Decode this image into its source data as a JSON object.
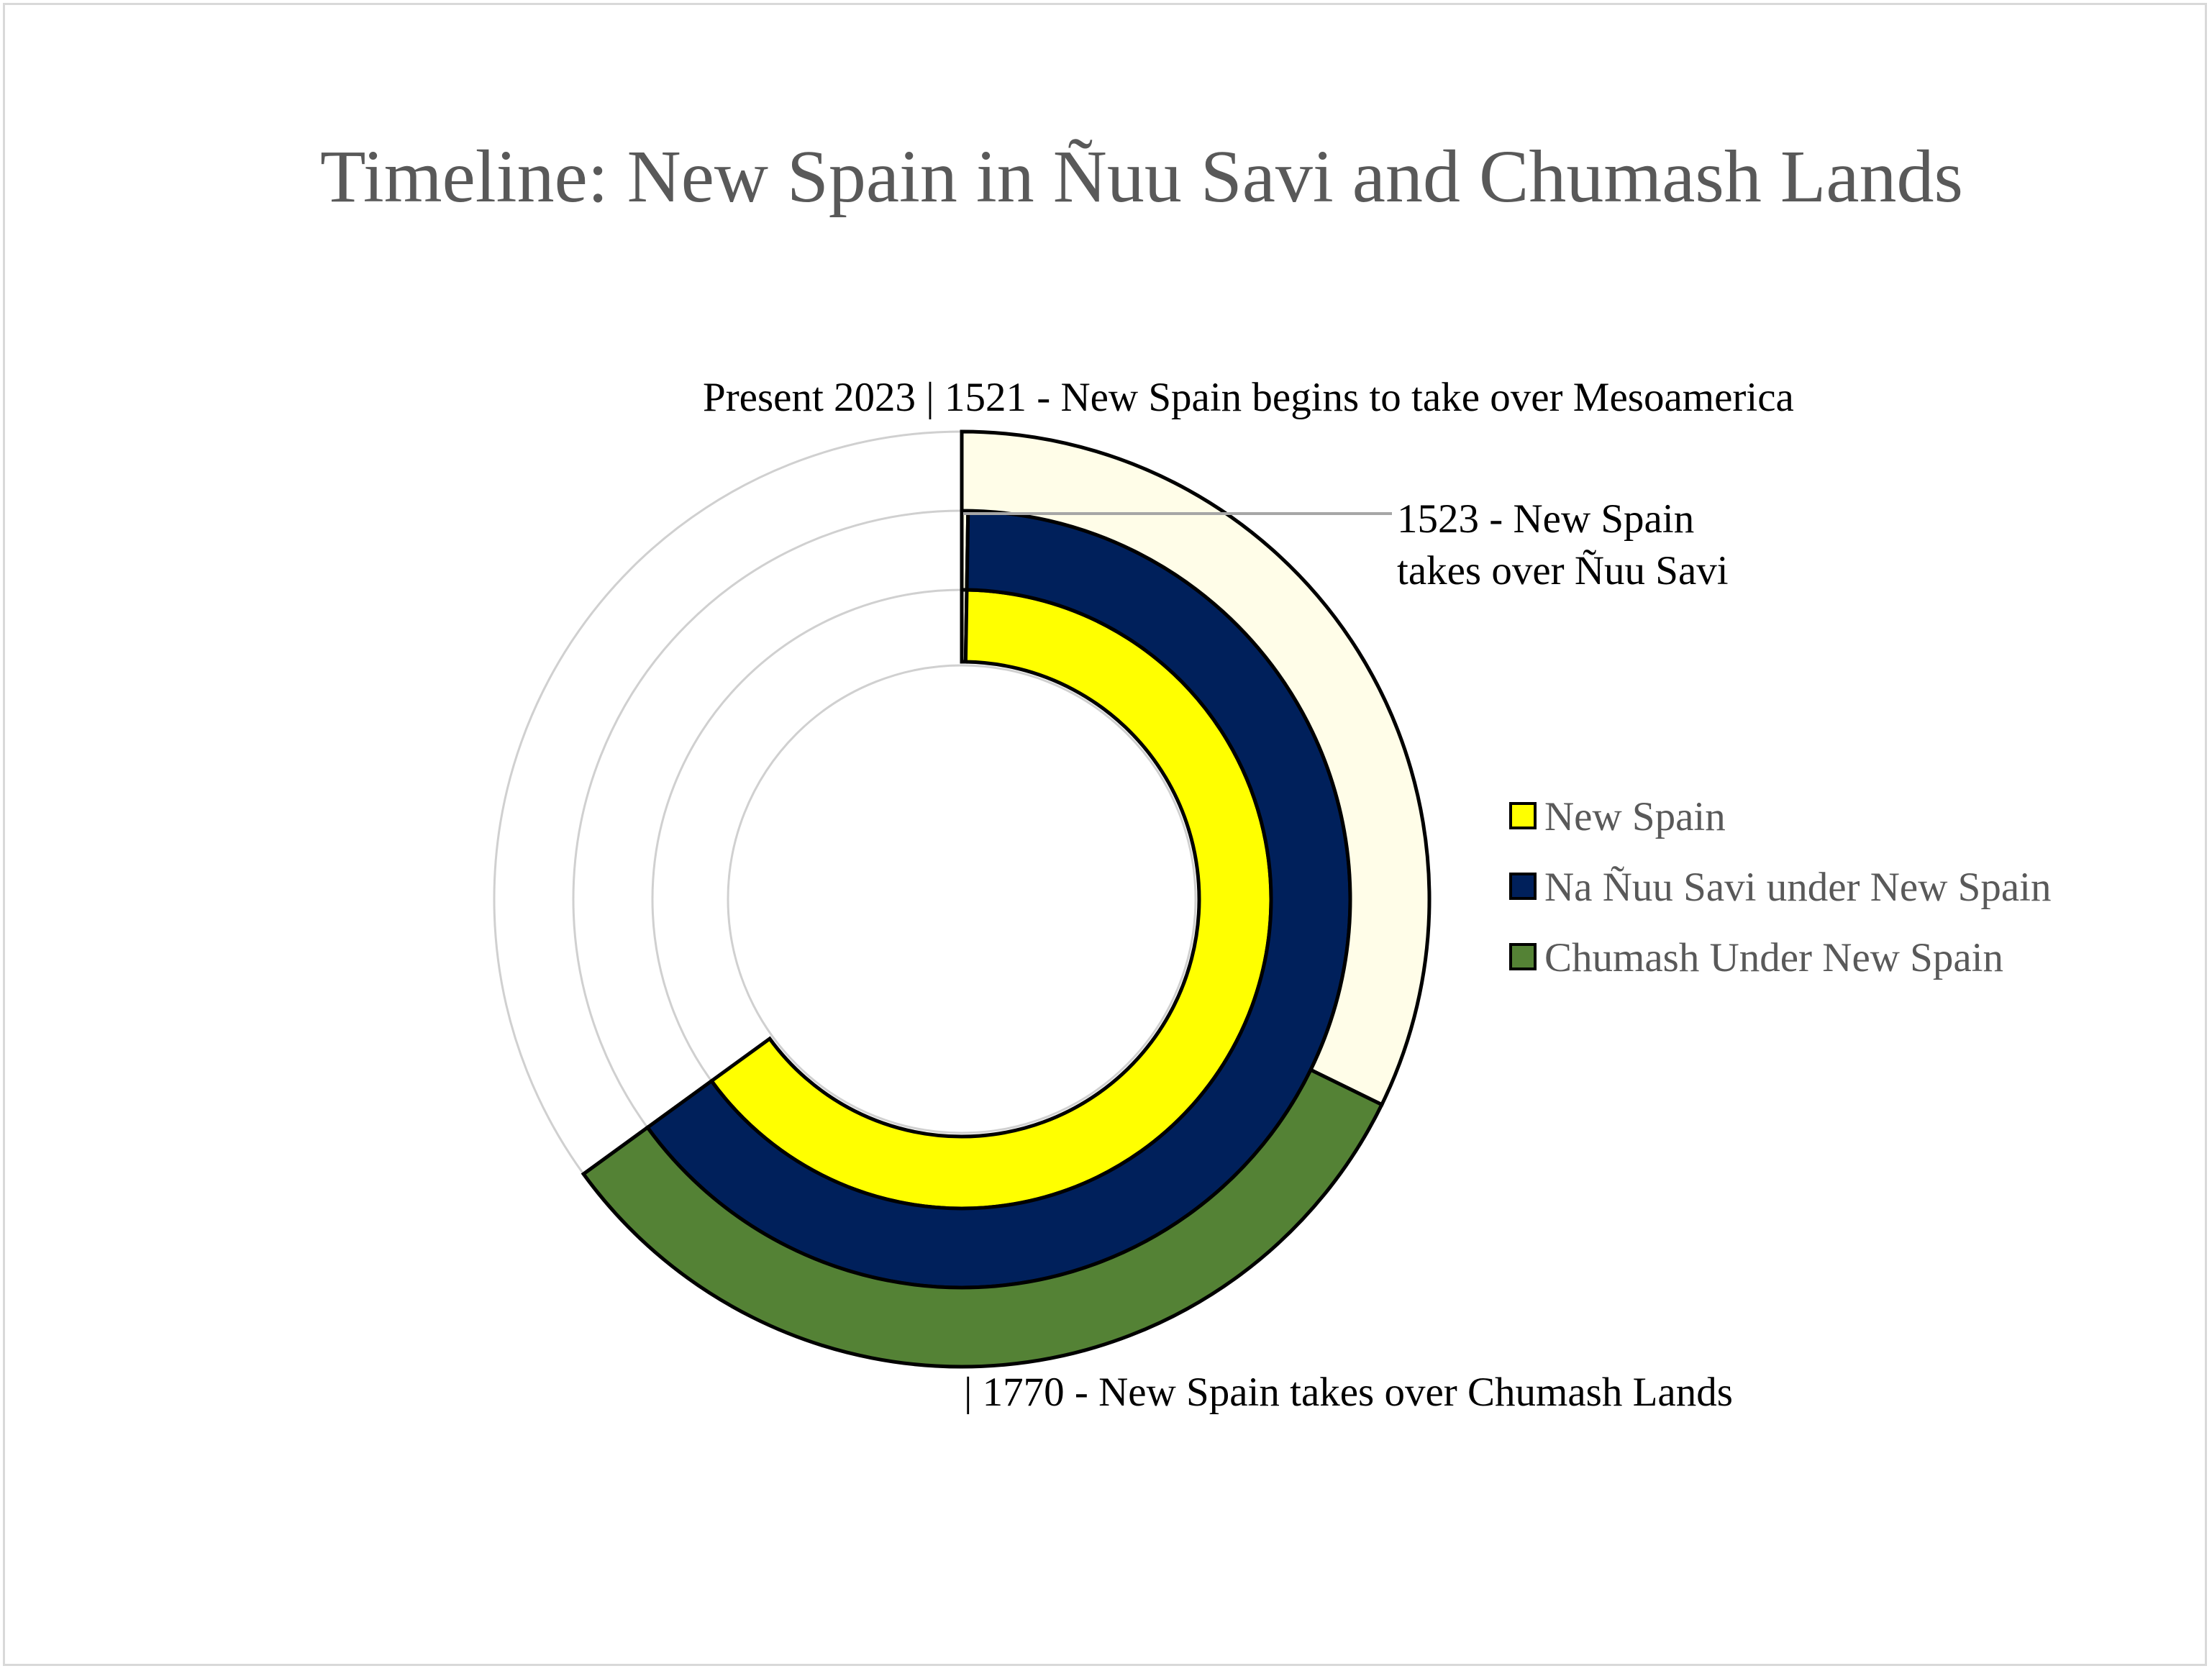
{
  "chart_data": {
    "type": "radial-bar",
    "title": "Timeline: New Spain in Ñuu Savi and Chumash Lands",
    "rings_total_years": 502,
    "series": [
      {
        "name": "New Spain",
        "color": "#ffff00",
        "ring": "inner",
        "start_year": 1521,
        "end_year": 2023,
        "segments": [
          {
            "label": "",
            "start_year": 1521,
            "years": 2,
            "color": "#fffde8"
          },
          {
            "label": "",
            "start_year": 1523,
            "years": 500,
            "color": "#ffff00"
          }
        ]
      },
      {
        "name": "Na Ñuu Savi under New Spain",
        "color": "#00205b",
        "ring": "middle",
        "segments": [
          {
            "label": "",
            "start_year": 1521,
            "years": 2,
            "color": "#fffde8"
          },
          {
            "label": "",
            "start_year": 1523,
            "years": 500,
            "color": "#00205b"
          }
        ]
      },
      {
        "name": "Chumash Under New Spain",
        "color": "#548235",
        "ring": "outer",
        "segments": [
          {
            "label": "",
            "start_year": 1521,
            "years": 249,
            "color": "#fffde8"
          },
          {
            "label": "",
            "start_year": 1770,
            "years": 253,
            "color": "#548235"
          }
        ]
      }
    ],
    "annotations": [
      {
        "name": "annotation-1521",
        "text": "Present 2023 | 1521 - New Spain begins to take over Mesoamerica"
      },
      {
        "name": "annotation-1523",
        "lines": [
          "1523 - New Spain",
          "takes over Ñuu Savi"
        ]
      },
      {
        "name": "annotation-1770",
        "text": "| 1770 - New Spain takes over Chumash Lands"
      }
    ],
    "legend": {
      "placement": "right",
      "entries": [
        {
          "label": "New Spain",
          "color": "#ffff00"
        },
        {
          "label": "Na Ñuu Savi under New Spain",
          "color": "#00205b"
        },
        {
          "label": "Chumash Under New Spain",
          "color": "#548235"
        }
      ]
    },
    "grid": true
  }
}
